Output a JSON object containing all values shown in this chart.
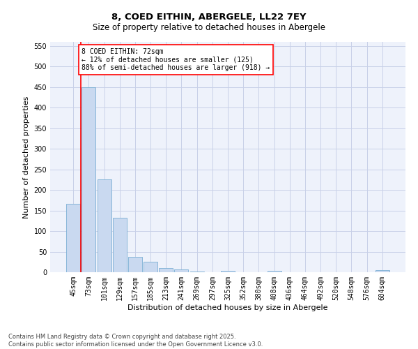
{
  "title": "8, COED EITHIN, ABERGELE, LL22 7EY",
  "subtitle": "Size of property relative to detached houses in Abergele",
  "xlabel": "Distribution of detached houses by size in Abergele",
  "ylabel": "Number of detached properties",
  "footer": "Contains HM Land Registry data © Crown copyright and database right 2025.\nContains public sector information licensed under the Open Government Licence v3.0.",
  "categories": [
    "45sqm",
    "73sqm",
    "101sqm",
    "129sqm",
    "157sqm",
    "185sqm",
    "213sqm",
    "241sqm",
    "269sqm",
    "297sqm",
    "325sqm",
    "352sqm",
    "380sqm",
    "408sqm",
    "436sqm",
    "464sqm",
    "492sqm",
    "520sqm",
    "548sqm",
    "576sqm",
    "604sqm"
  ],
  "values": [
    167,
    450,
    225,
    133,
    37,
    25,
    10,
    6,
    2,
    0,
    3,
    0,
    0,
    4,
    0,
    0,
    0,
    0,
    0,
    0,
    5
  ],
  "bar_color": "#c9d9f0",
  "bar_edge_color": "#7bafd4",
  "annotation_text": "8 COED EITHIN: 72sqm\n← 12% of detached houses are smaller (125)\n88% of semi-detached houses are larger (918) →",
  "box_color": "red",
  "ylim": [
    0,
    560
  ],
  "yticks": [
    0,
    50,
    100,
    150,
    200,
    250,
    300,
    350,
    400,
    450,
    500,
    550
  ],
  "bg_color": "#eef2fb",
  "grid_color": "#c8d0e8",
  "title_fontsize": 9.5,
  "subtitle_fontsize": 8.5,
  "axis_label_fontsize": 8,
  "tick_fontsize": 7,
  "footer_fontsize": 6,
  "annot_fontsize": 7
}
